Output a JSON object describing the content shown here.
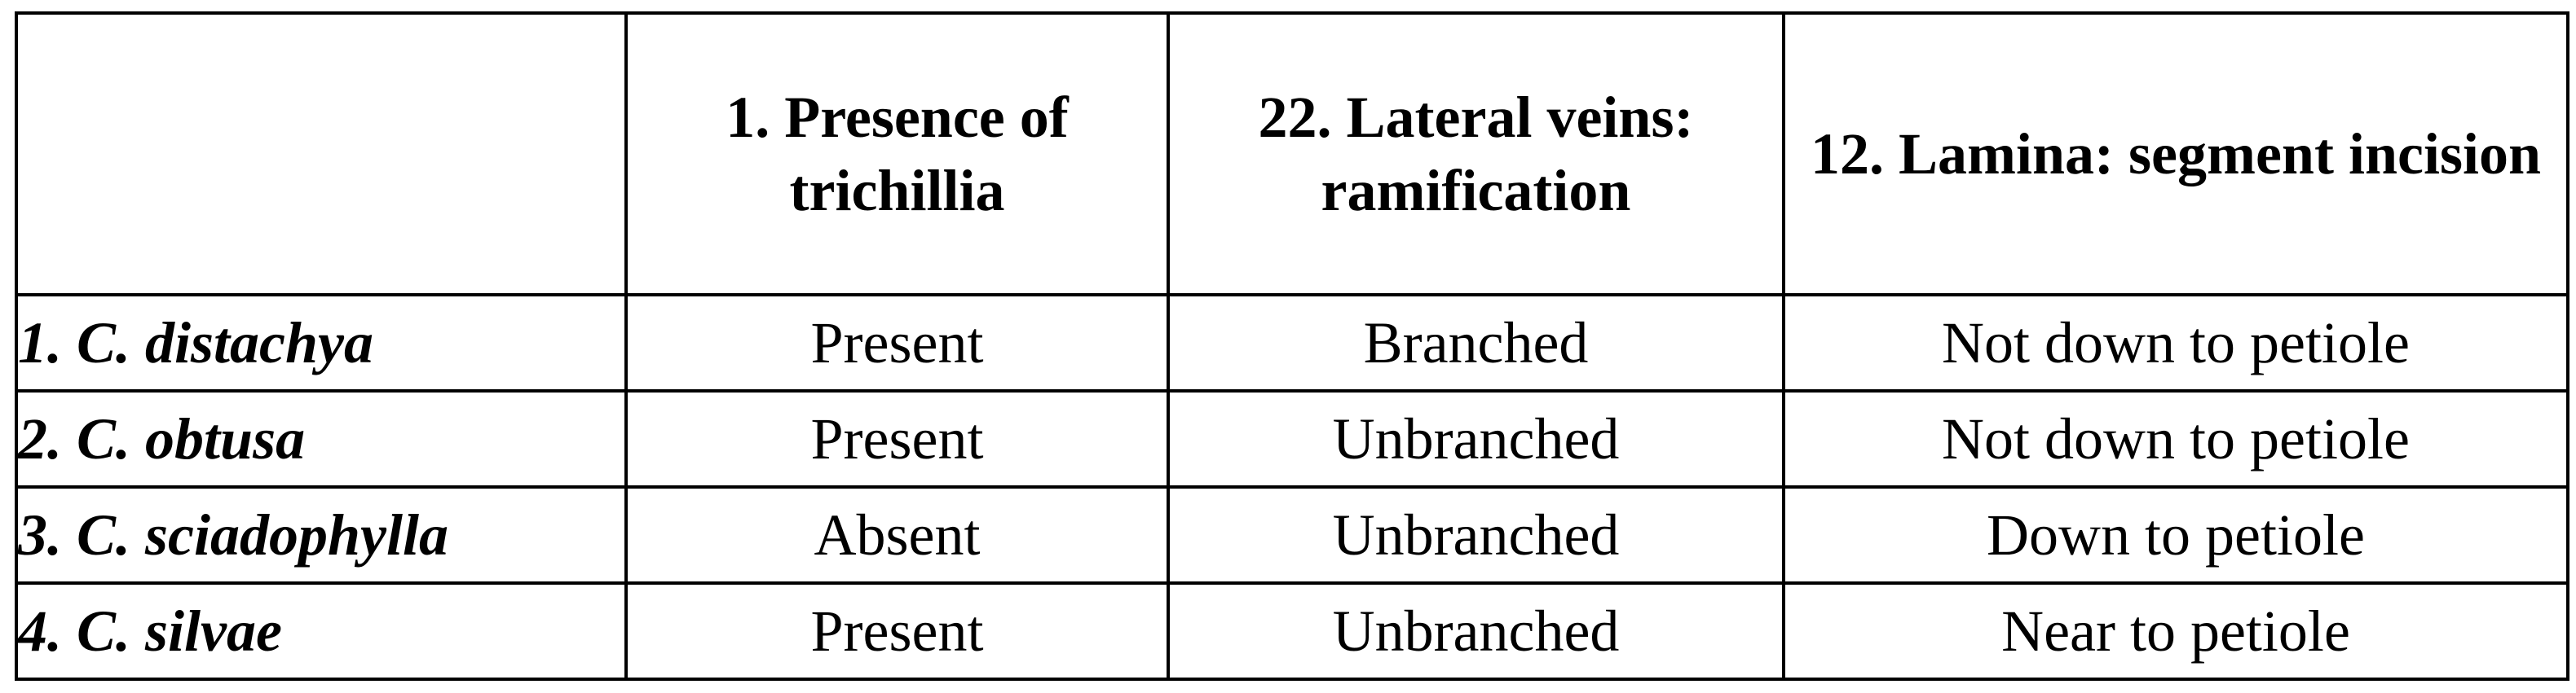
{
  "table": {
    "headers": [
      "",
      "1. Presence of trichillia",
      "22. Lateral veins: ramification",
      "12. Lamina: segment incision"
    ],
    "rows": [
      [
        "1. C. distachya",
        "Present",
        "Branched",
        "Not down to petiole"
      ],
      [
        "2. C. obtusa",
        "Present",
        "Unbranched",
        "Not down to petiole"
      ],
      [
        "3. C. sciadophylla",
        "Absent",
        "Unbranched",
        "Down to petiole"
      ],
      [
        "4. C. silvae",
        "Present",
        "Unbranched",
        "Near to petiole"
      ]
    ]
  }
}
